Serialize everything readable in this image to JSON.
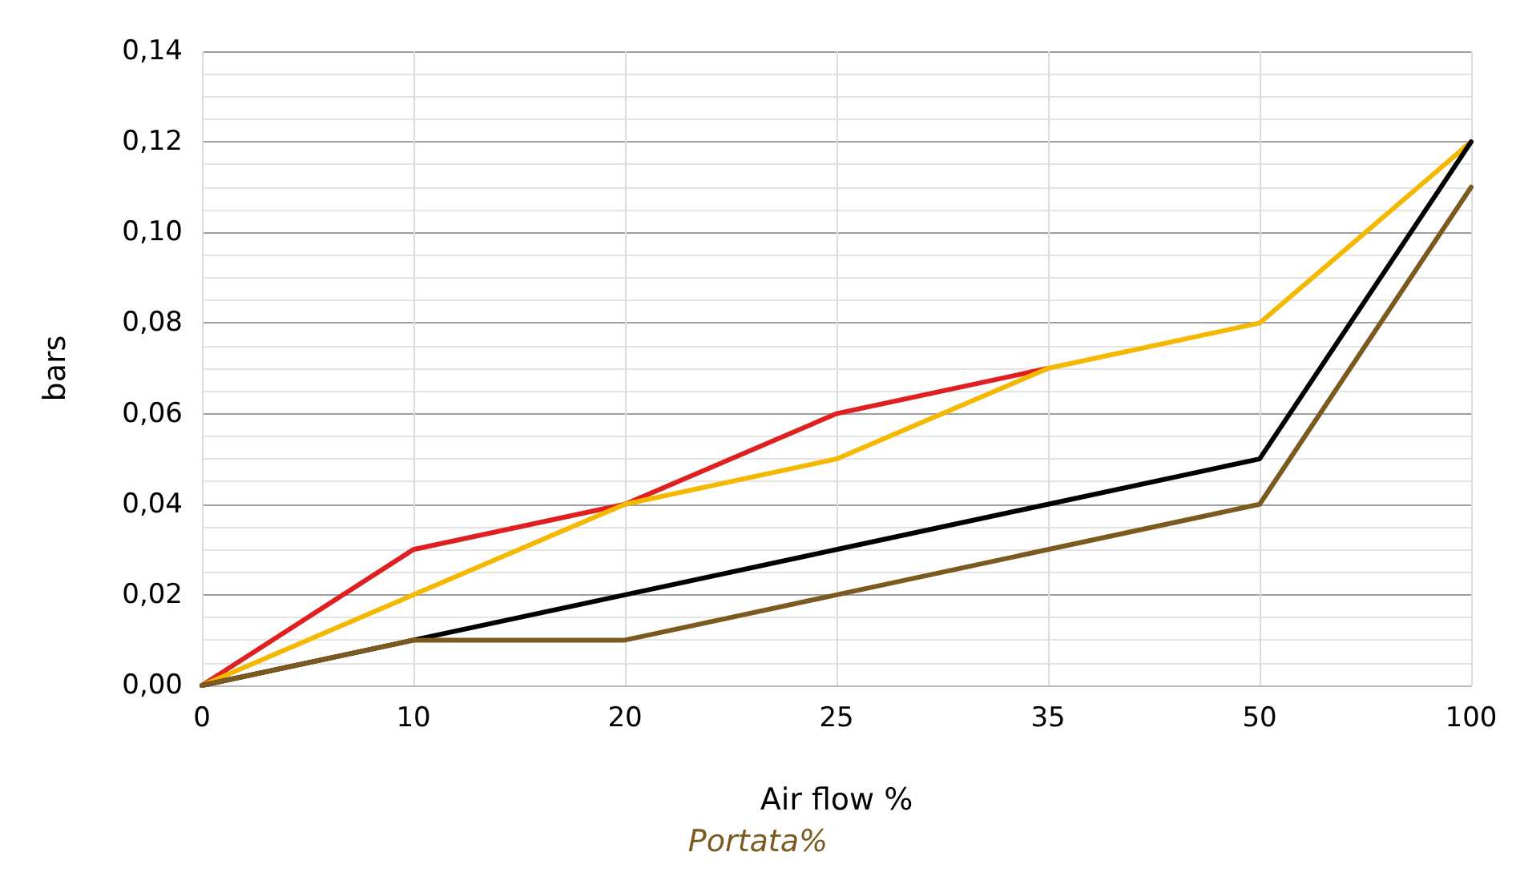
{
  "chart_data": {
    "type": "line",
    "xlabel": "Air flow %",
    "ylabel": "bars",
    "annotations": [
      "Portata%"
    ],
    "categories": [
      "0",
      "10",
      "20",
      "25",
      "35",
      "50",
      "100"
    ],
    "series": [
      {
        "color": "#e02020",
        "values": [
          0,
          0.03,
          0.04,
          0.06,
          0.07,
          null,
          null
        ]
      },
      {
        "color": "#f5b800",
        "values": [
          0,
          0.02,
          0.04,
          0.05,
          0.07,
          0.08,
          0.12
        ]
      },
      {
        "color": "#000000",
        "values": [
          0,
          0.01,
          0.02,
          0.03,
          0.04,
          0.05,
          0.12
        ]
      },
      {
        "color": "#7a5a1e",
        "values": [
          0,
          0.01,
          0.01,
          0.02,
          0.03,
          0.04,
          0.11
        ]
      }
    ],
    "ylim": [
      0,
      0.14
    ],
    "yticks": [
      {
        "value": 0,
        "label": "0,00"
      },
      {
        "value": 0.02,
        "label": "0,02"
      },
      {
        "value": 0.04,
        "label": "0,04"
      },
      {
        "value": 0.06,
        "label": "0,06"
      },
      {
        "value": 0.08,
        "label": "0,08"
      },
      {
        "value": 0.1,
        "label": "0,10"
      },
      {
        "value": 0.12,
        "label": "0,12"
      },
      {
        "value": 0.14,
        "label": "0,14"
      }
    ],
    "grid": true,
    "marker": "none",
    "line_style": "solid"
  }
}
